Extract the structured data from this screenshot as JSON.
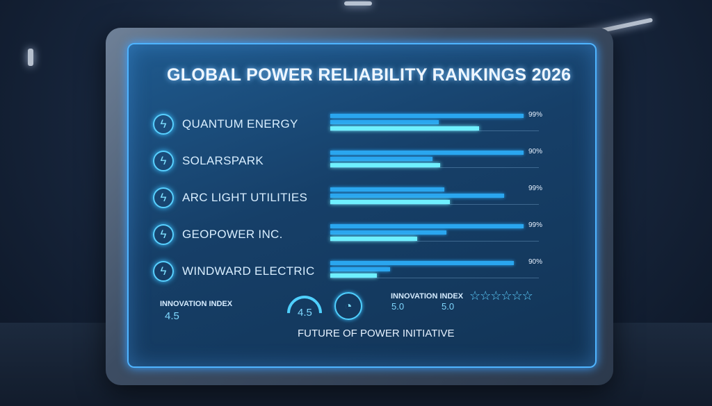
{
  "title": "GLOBAL POWER RELIABILITY RANKINGS 2026",
  "chart_data": {
    "type": "bar",
    "title": "GLOBAL POWER RELIABILITY RANKINGS 2026",
    "categories": [
      "QUANTUM ENERGY",
      "SOLARSPARK",
      "ARC LIGHT UTILITIES",
      "GEOPOWER INC.",
      "WINDWARD ELECTRIC"
    ],
    "labels": [
      "99%",
      "90%",
      "99%",
      "99%",
      "90%"
    ],
    "series": [
      {
        "name": "bar1",
        "values": [
          1.0,
          1.0,
          0.59,
          1.0,
          0.95
        ]
      },
      {
        "name": "bar2",
        "values": [
          0.56,
          0.53,
          0.9,
          0.6,
          0.31
        ]
      },
      {
        "name": "bar3",
        "values": [
          0.77,
          0.57,
          0.62,
          0.45,
          0.24
        ]
      }
    ],
    "xlim": [
      0,
      1
    ]
  },
  "footer": {
    "left_label": "INNOVATION INDEX",
    "left_value": "4.5",
    "gauge_value": "4.5",
    "right_label": "INNOVATION INDEX",
    "right_value_1": "5.0",
    "right_value_2": "5.0",
    "stars": "☆☆☆☆☆☆",
    "initiative": "FUTURE OF POWER INITIATIVE"
  }
}
